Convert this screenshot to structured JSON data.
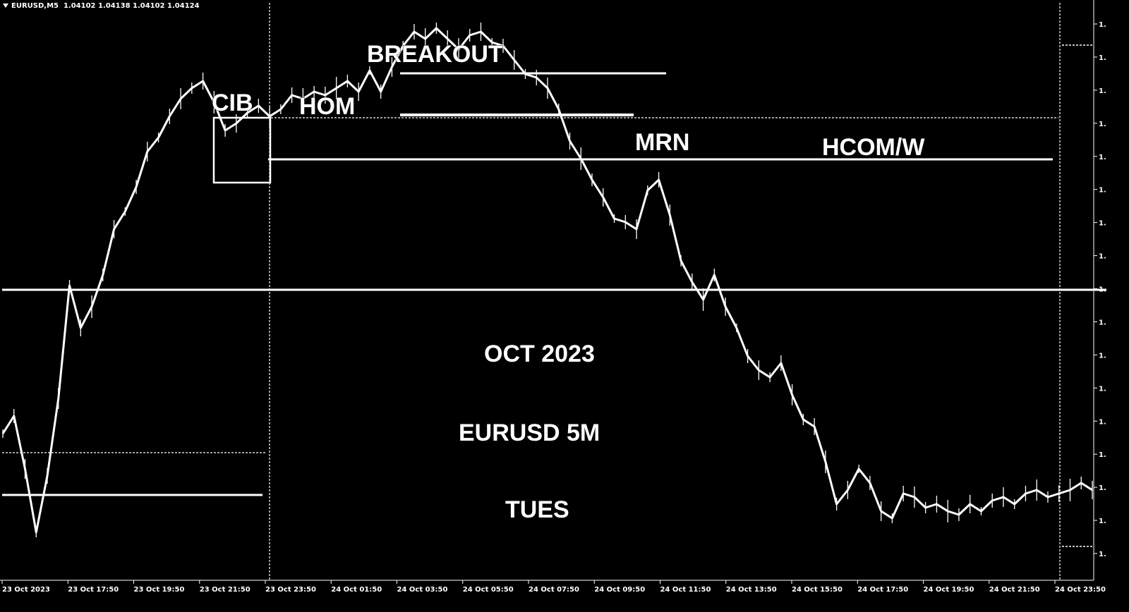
{
  "header": {
    "symbol": "EURUSD,M5",
    "ohlc": "1.04102 1.04138 1.04102 1.04124"
  },
  "chart_data": {
    "type": "line",
    "title": "",
    "xlabel": "",
    "ylabel": "",
    "x_ticks": [
      "23 Oct 2023",
      "23 Oct 17:50",
      "23 Oct 19:50",
      "23 Oct 21:50",
      "23 Oct 23:50",
      "24 Oct 01:50",
      "24 Oct 03:50",
      "24 Oct 05:50",
      "24 Oct 07:50",
      "24 Oct 09:50",
      "24 Oct 11:50",
      "24 Oct 13:50",
      "24 Oct 15:50",
      "24 Oct 17:50",
      "24 Oct 19:50",
      "24 Oct 21:50",
      "24 Oct 23:50"
    ],
    "y_ticks": [
      "1.",
      "1.",
      "1.",
      "1.",
      "1.",
      "1.",
      "1.",
      "1.",
      "1.",
      "1.",
      "1.",
      "1.",
      "1.",
      "1.",
      "1.",
      "1.",
      "1."
    ],
    "grid": false,
    "series": [
      {
        "values": [
          0.3,
          0.35,
          0.2,
          0.02,
          0.18,
          0.4,
          0.72,
          0.6,
          0.66,
          0.75,
          0.88,
          0.93,
          1.0,
          1.1,
          1.14,
          1.2,
          1.25,
          1.28,
          1.3,
          1.24,
          1.16,
          1.18,
          1.21,
          1.23,
          1.2,
          1.22,
          1.26,
          1.25,
          1.27,
          1.26,
          1.28,
          1.3,
          1.27,
          1.33,
          1.27,
          1.34,
          1.4,
          1.44,
          1.42,
          1.45,
          1.42,
          1.39,
          1.43,
          1.44,
          1.41,
          1.4,
          1.36,
          1.32,
          1.31,
          1.28,
          1.22,
          1.13,
          1.08,
          1.02,
          0.97,
          0.91,
          0.9,
          0.88,
          0.99,
          1.02,
          0.92,
          0.79,
          0.73,
          0.68,
          0.75,
          0.66,
          0.6,
          0.52,
          0.48,
          0.46,
          0.5,
          0.41,
          0.34,
          0.32,
          0.22,
          0.1,
          0.14,
          0.2,
          0.16,
          0.08,
          0.06,
          0.13,
          0.12,
          0.09,
          0.1,
          0.08,
          0.07,
          0.1,
          0.08,
          0.11,
          0.12,
          0.1,
          0.13,
          0.14,
          0.12,
          0.13,
          0.14,
          0.16,
          0.14
        ]
      }
    ],
    "levels": [
      {
        "label": "CIB"
      },
      {
        "label": "HOM"
      },
      {
        "label": "BREAKOUT"
      },
      {
        "label": "MRN"
      },
      {
        "label": "HCOM/W"
      }
    ],
    "annotations": [
      "OCT 2023",
      "EURUSD 5M",
      "TUES"
    ]
  }
}
